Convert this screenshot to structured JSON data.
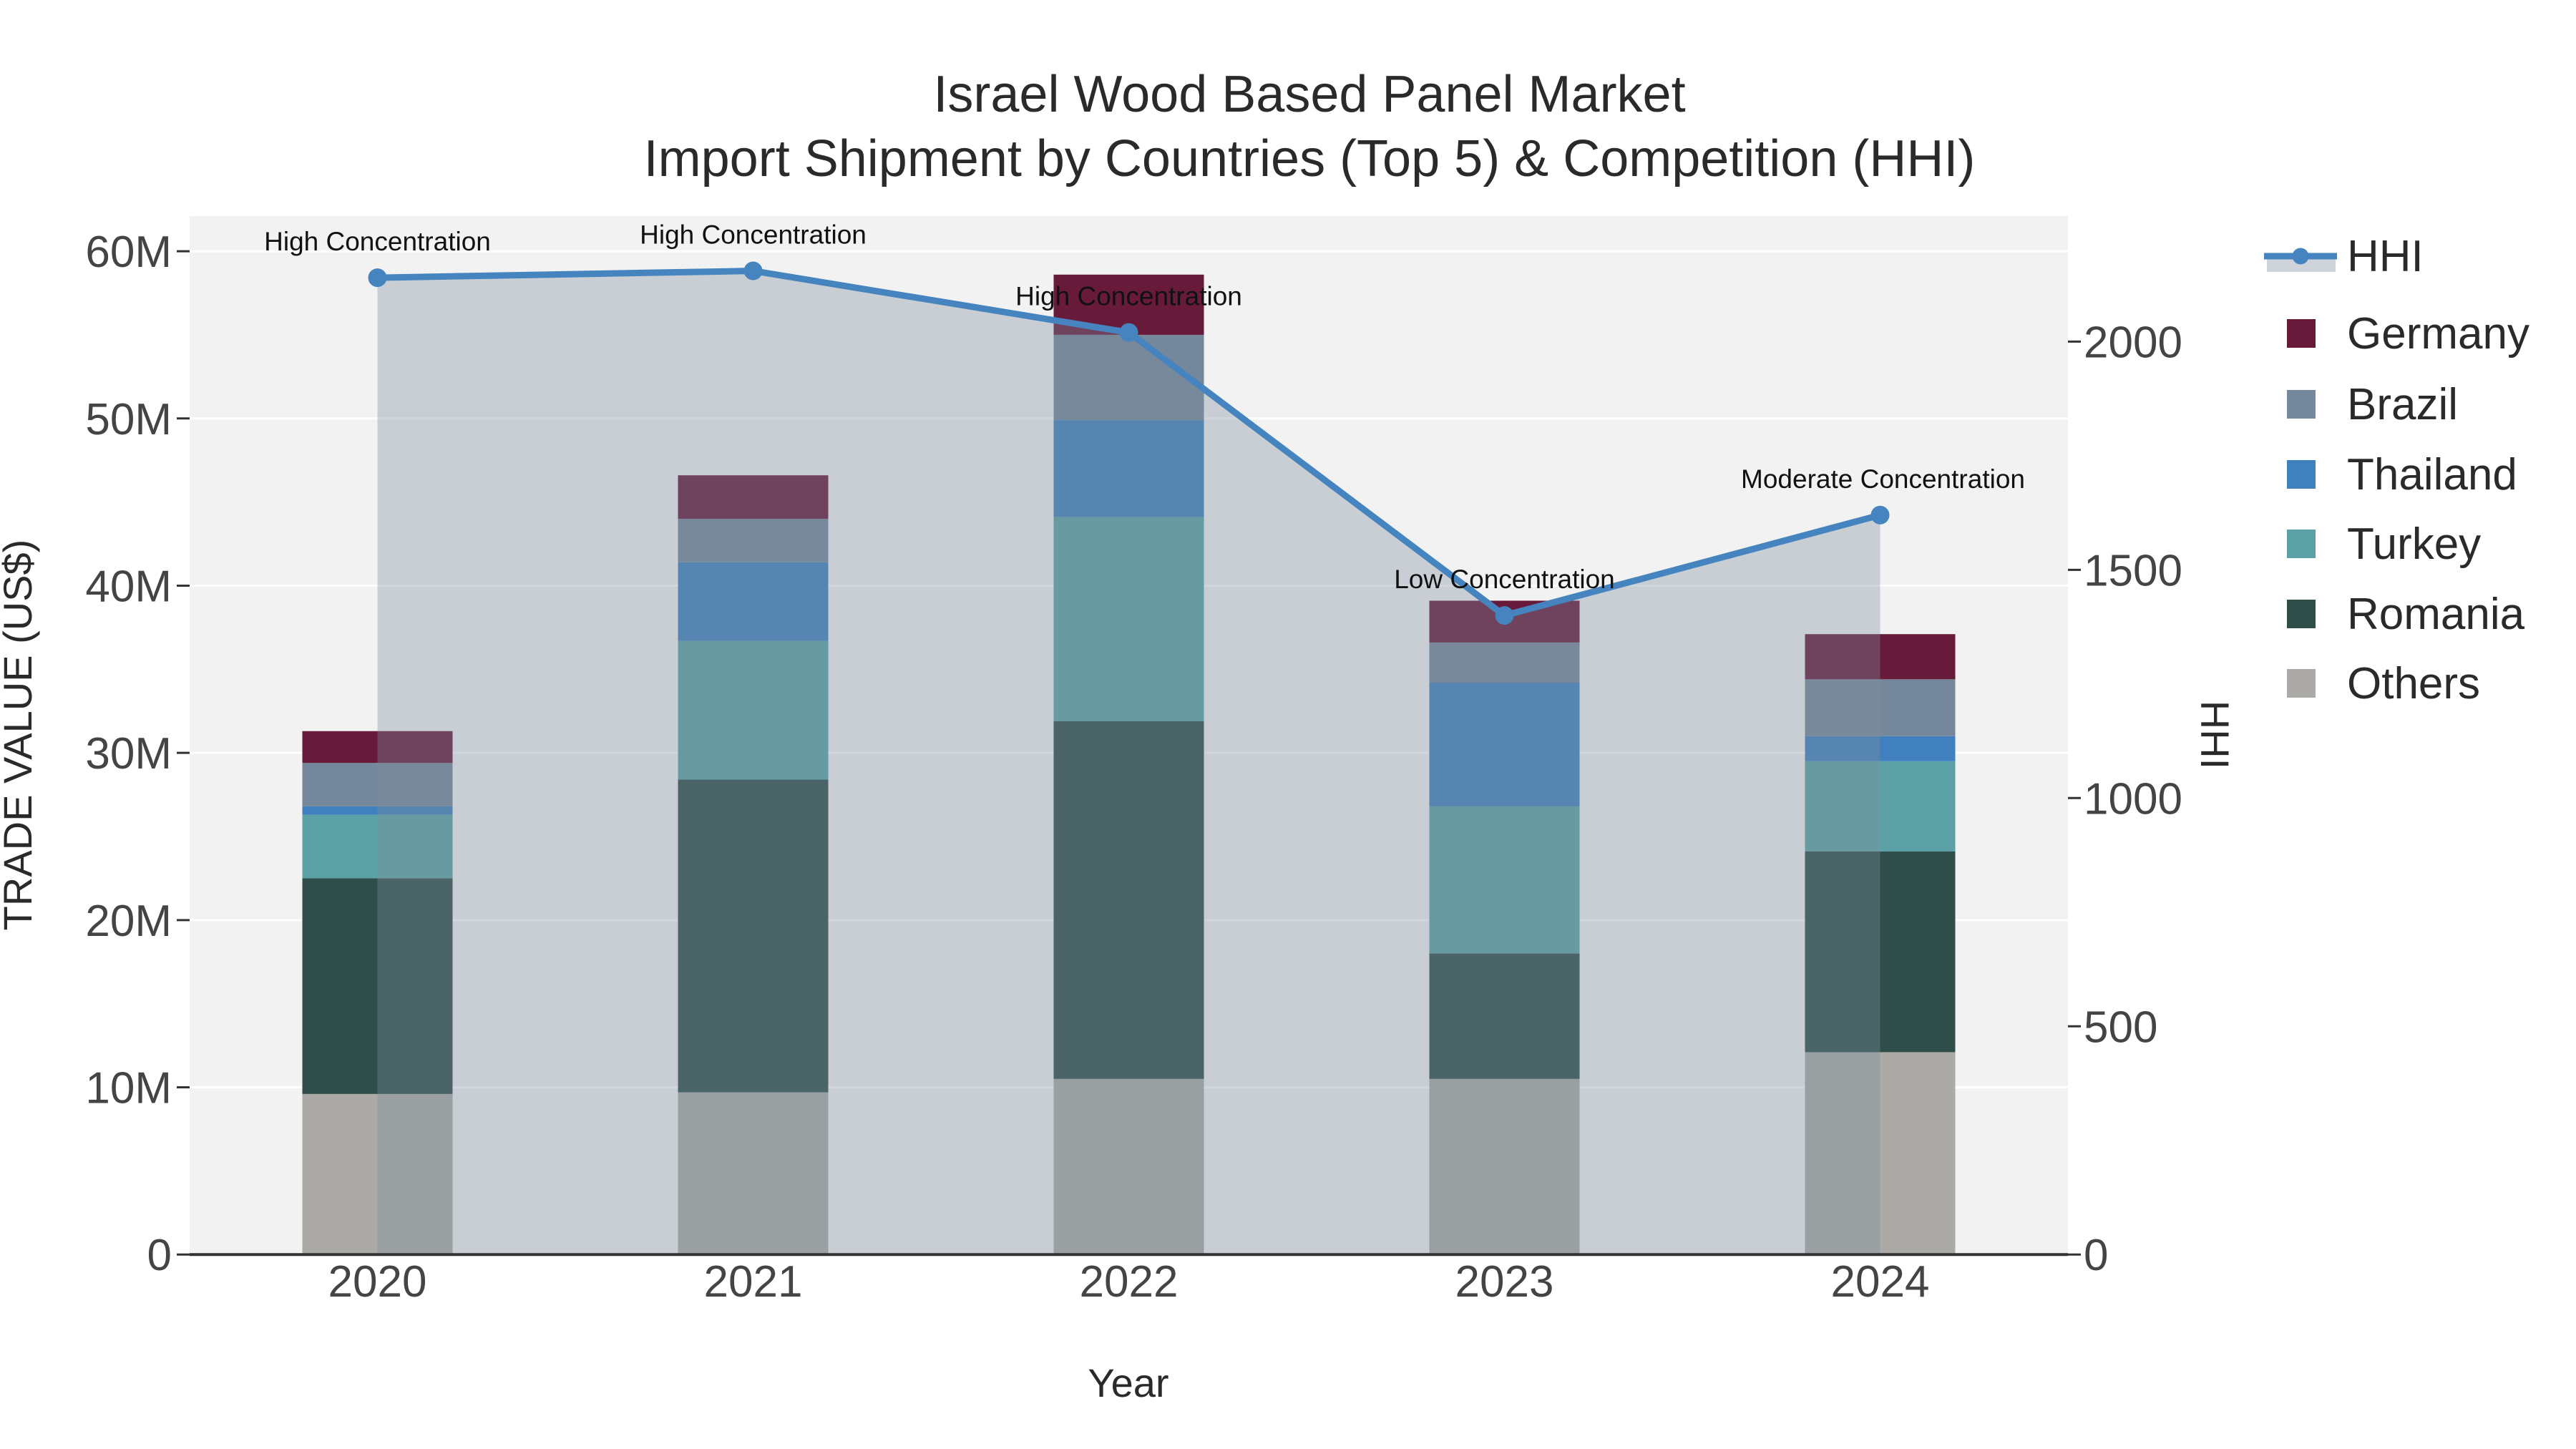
{
  "title": {
    "line1": "Israel Wood Based Panel Market",
    "line2": "Import Shipment by Countries (Top 5) & Competition (HHI)"
  },
  "axes": {
    "x": {
      "title": "Year",
      "tick_labels": [
        "2020",
        "2021",
        "2022",
        "2023",
        "2024"
      ]
    },
    "y_left": {
      "title": "TRADE VALUE (US$)",
      "tick_labels": [
        "0",
        "10M",
        "20M",
        "30M",
        "40M",
        "50M",
        "60M"
      ],
      "tick_values_M": [
        0,
        10,
        20,
        30,
        40,
        50,
        60
      ]
    },
    "y_right": {
      "title": "HHI",
      "tick_labels": [
        "0",
        "500",
        "1000",
        "1500",
        "2000"
      ],
      "tick_values": [
        0,
        500,
        1000,
        1500,
        2000
      ]
    }
  },
  "legend": {
    "items": [
      {
        "label": "HHI",
        "type": "line",
        "color": "#4584bf"
      },
      {
        "label": "Germany",
        "type": "swatch",
        "color": "#681a3b"
      },
      {
        "label": "Brazil",
        "type": "swatch",
        "color": "#75879a"
      },
      {
        "label": "Thailand",
        "type": "swatch",
        "color": "#4080bf"
      },
      {
        "label": "Turkey",
        "type": "swatch",
        "color": "#5ba1a5"
      },
      {
        "label": "Romania",
        "type": "swatch",
        "color": "#2f4e4a"
      },
      {
        "label": "Others",
        "type": "swatch",
        "color": "#abaaa6"
      }
    ]
  },
  "chart_data": {
    "type": "bar",
    "subtype": "stacked-bar-with-line-overlay",
    "categories": [
      "2020",
      "2021",
      "2022",
      "2023",
      "2024"
    ],
    "bar_value_unit": "USD millions",
    "series": [
      {
        "name": "Others",
        "color": "#abaaa6",
        "values": [
          9.6,
          9.7,
          10.5,
          10.5,
          12.1
        ]
      },
      {
        "name": "Romania",
        "color": "#2f4e4a",
        "values": [
          12.9,
          18.7,
          21.4,
          7.5,
          12.0
        ]
      },
      {
        "name": "Turkey",
        "color": "#5ba1a5",
        "values": [
          3.8,
          8.3,
          12.2,
          8.8,
          5.4
        ]
      },
      {
        "name": "Thailand",
        "color": "#4080bf",
        "values": [
          0.5,
          4.7,
          5.8,
          7.4,
          1.5
        ]
      },
      {
        "name": "Brazil",
        "color": "#75879a",
        "values": [
          2.6,
          2.6,
          5.1,
          2.4,
          3.4
        ]
      },
      {
        "name": "Germany",
        "color": "#681a3b",
        "values": [
          1.9,
          2.6,
          3.6,
          2.5,
          2.7
        ]
      }
    ],
    "bar_totals_M": [
      31.3,
      46.6,
      58.6,
      39.1,
      37.1
    ],
    "line_series": {
      "name": "HHI",
      "color": "#4584bf",
      "area_fill": "rgba(126,141,154,0.36)",
      "values": [
        2140,
        2155,
        2020,
        1400,
        1620
      ]
    },
    "annotations": [
      {
        "category": "2020",
        "text": "High Concentration"
      },
      {
        "category": "2021",
        "text": "High Concentration"
      },
      {
        "category": "2022",
        "text": "High Concentration"
      },
      {
        "category": "2023",
        "text": "Low Concentration"
      },
      {
        "category": "2024",
        "text": "Moderate Concentration"
      }
    ],
    "title": "Israel Wood Based Panel Market Import Shipment by Countries (Top 5) & Competition (HHI)",
    "xlabel": "Year",
    "ylabel_left": "TRADE VALUE (US$)",
    "ylabel_right": "HHI",
    "ylim_left_M": [
      0,
      62.1
    ],
    "ylim_right": [
      0,
      2275
    ],
    "grid": true,
    "legend_position": "right",
    "plot_background": "#f2f2f2",
    "gridline_color": "#ffffff",
    "axis_line_color": "#323232"
  }
}
